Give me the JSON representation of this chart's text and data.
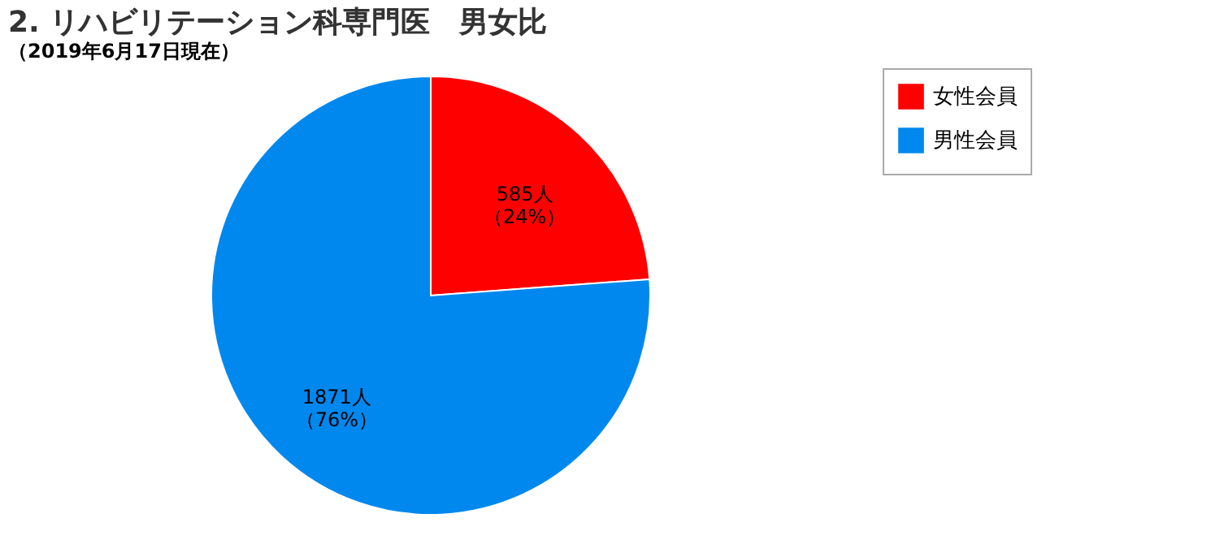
{
  "chart_data": {
    "type": "pie",
    "title": "2. リハビリテーション科専門医　男女比",
    "subtitle": "（2019年6月17日現在）",
    "categories": [
      "女性会員",
      "男性会員"
    ],
    "values": [
      585,
      1871
    ],
    "colors": [
      "#ff0000",
      "#0088ee"
    ],
    "value_labels": [
      "585人（24%）",
      "1871人（76%）"
    ],
    "legend": "right"
  }
}
